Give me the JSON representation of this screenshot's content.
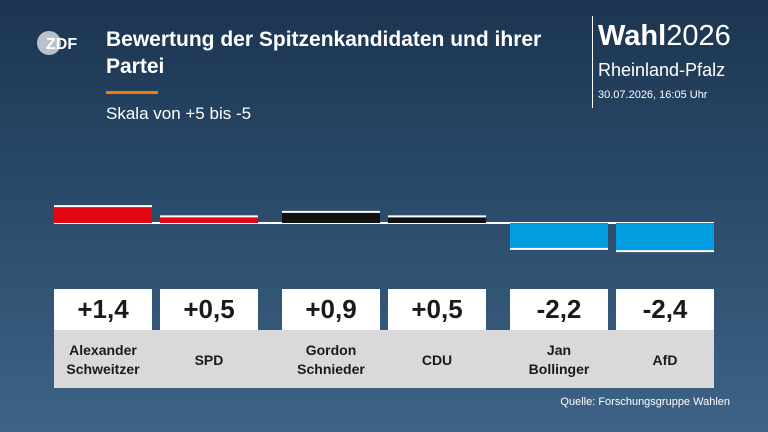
{
  "header": {
    "logo_text": "ZDF",
    "title": "Bewertung der Spitzenkandidaten und ihrer Partei",
    "subtitle": "Skala von +5 bis -5"
  },
  "brand": {
    "prefix": "Wahl",
    "year": "2026",
    "region": "Rheinland-Pfalz",
    "timestamp": "30.07.2026, 16:05 Uhr"
  },
  "chart_data": {
    "type": "bar",
    "title": "Bewertung der Spitzenkandidaten und ihrer Partei",
    "subtitle": "Skala von +5 bis -5",
    "ylim": [
      -5,
      5
    ],
    "categories": [
      "Alexander\nSchweitzer",
      "SPD",
      "Gordon\nSchnieder",
      "CDU",
      "Jan\nBollinger",
      "AfD"
    ],
    "values": [
      1.4,
      0.5,
      0.9,
      0.5,
      -2.2,
      -2.4
    ],
    "value_labels": [
      "+1,4",
      "+0,5",
      "+0,9",
      "+0,5",
      "-2,2",
      "-2,4"
    ],
    "colors": [
      "#e30613",
      "#e30613",
      "#111111",
      "#111111",
      "#009ee0",
      "#009ee0"
    ]
  },
  "footer": {
    "source": "Quelle: Forschungsgruppe Wahlen"
  }
}
